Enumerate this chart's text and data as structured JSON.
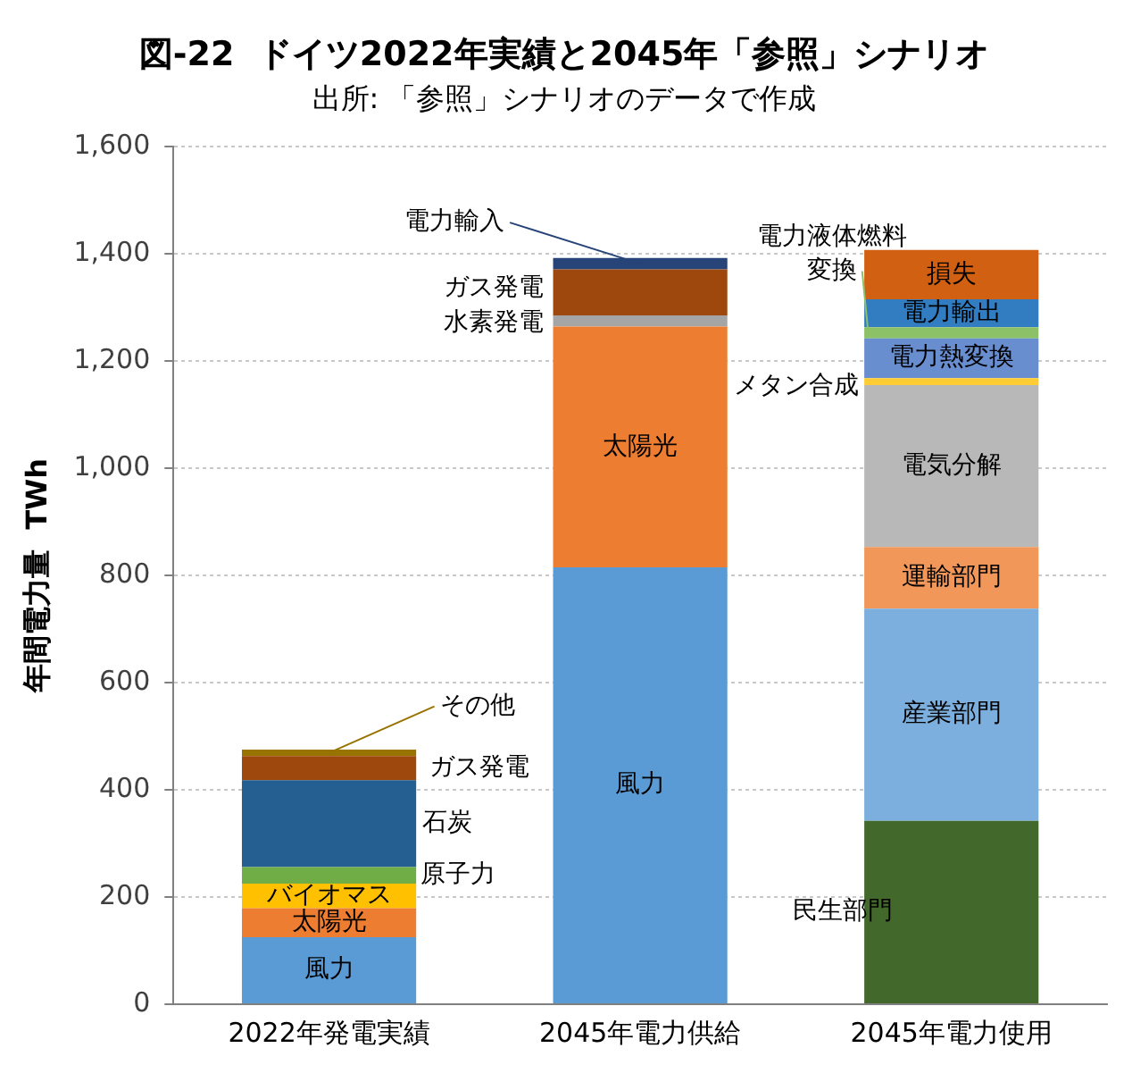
{
  "chart_data": {
    "type": "bar",
    "title": "図-22  ドイツ2022年実績と2045年「参照」シナリオ",
    "subtitle": "出所: 「参照」シナリオのデータで作成",
    "ylabel": "年間電力量  TWh",
    "categories": [
      "2022年発電実績",
      "2045年電力供給",
      "2045年電力使用"
    ],
    "stacked": true,
    "ylim": [
      0,
      1600
    ],
    "yticks": [
      {
        "value": 0,
        "label": "0"
      },
      {
        "value": 200,
        "label": "200"
      },
      {
        "value": 400,
        "label": "400"
      },
      {
        "value": 600,
        "label": "600"
      },
      {
        "value": 800,
        "label": "800"
      },
      {
        "value": 1000,
        "label": "1,000"
      },
      {
        "value": 1200,
        "label": "1,200"
      },
      {
        "value": 1400,
        "label": "1,400"
      },
      {
        "value": 1600,
        "label": "1,600"
      }
    ],
    "grid": "y",
    "legend": false,
    "series": [
      {
        "name": "風力",
        "color": "#5b9bd5",
        "values": [
          125,
          815,
          null
        ]
      },
      {
        "name": "太陽光",
        "color": "#ed7d31",
        "values": [
          54,
          449,
          null
        ]
      },
      {
        "name": "バイオマス",
        "color": "#ffc000",
        "values": [
          46,
          null,
          null
        ]
      },
      {
        "name": "原子力",
        "color": "#70ad47",
        "values": [
          31,
          null,
          null
        ]
      },
      {
        "name": "石炭",
        "color": "#255e91",
        "values": [
          162,
          null,
          null
        ]
      },
      {
        "name": "水素発電",
        "color": "#a5a5a5",
        "values": [
          null,
          21,
          null
        ]
      },
      {
        "name": "ガス発電",
        "color": "#9e480e",
        "values": [
          45,
          86,
          null
        ]
      },
      {
        "name": "その他",
        "color": "#997300",
        "values": [
          12,
          null,
          null
        ]
      },
      {
        "name": "電力輸入",
        "color": "#264478",
        "values": [
          null,
          21,
          null
        ]
      },
      {
        "name": "民生部門",
        "color": "#43682b",
        "values": [
          null,
          null,
          342
        ]
      },
      {
        "name": "産業部門",
        "color": "#7cafdd",
        "values": [
          null,
          null,
          396
        ]
      },
      {
        "name": "運輸部門",
        "color": "#f1975a",
        "values": [
          null,
          null,
          115
        ]
      },
      {
        "name": "電気分解",
        "color": "#b8b8b8",
        "values": [
          null,
          null,
          302
        ]
      },
      {
        "name": "メタン合成",
        "color": "#ffcd33",
        "values": [
          null,
          null,
          13
        ]
      },
      {
        "name": "電力熱変換",
        "color": "#698ed0",
        "values": [
          null,
          null,
          74
        ]
      },
      {
        "name": "電力液体燃料変換",
        "color": "#8cc168",
        "values": [
          null,
          null,
          21
        ]
      },
      {
        "name": "電力輸出",
        "color": "#327dc2",
        "values": [
          null,
          null,
          52
        ]
      },
      {
        "name": "損失",
        "color": "#d26012",
        "values": [
          null,
          null,
          92
        ]
      }
    ]
  }
}
